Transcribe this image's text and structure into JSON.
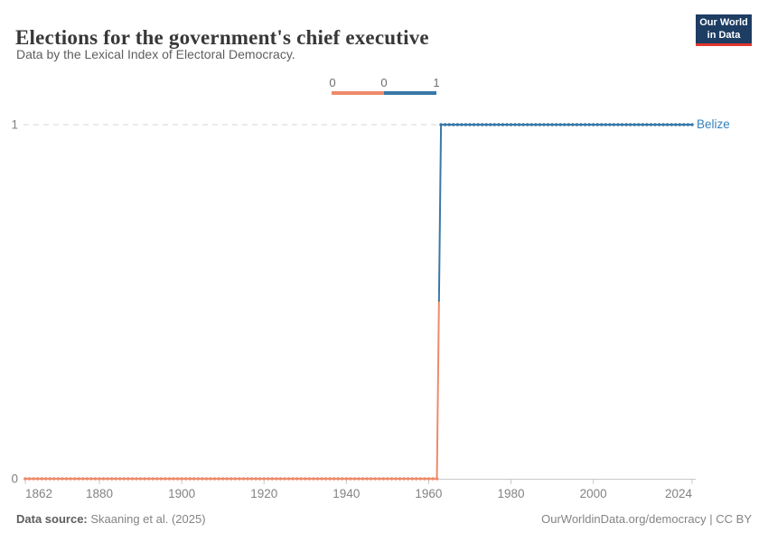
{
  "header": {
    "title": "Elections for the government's chief executive",
    "subtitle": "Data by the Lexical Index of Electoral Democracy.",
    "logo": {
      "line1": "Our World",
      "line2": "in Data",
      "bg_color": "#1d3d63",
      "accent_color": "#e0372e"
    }
  },
  "legend": {
    "labels": [
      "0",
      "0",
      "1"
    ],
    "segment_colors": [
      "#EE8A6A",
      "#3978A8"
    ]
  },
  "chart_data": {
    "type": "line",
    "title": "Elections for the government's chief executive",
    "subtitle": "Data by the Lexical Index of Electoral Democracy.",
    "entity_label": "Belize",
    "x_range": [
      1862,
      2024
    ],
    "y_range": [
      0,
      1
    ],
    "x_ticks": [
      1862,
      1880,
      1900,
      1920,
      1940,
      1960,
      1980,
      2000,
      2024
    ],
    "y_ticks": [
      0,
      1
    ],
    "grid": "horizontal-dashed-at-1",
    "legend_position": "top-center",
    "marker": "yearly-dots",
    "series": [
      {
        "name": "Belize",
        "segments": [
          {
            "start_year": 1862,
            "end_year": 1962,
            "value": 0,
            "color": "#EE8A6A"
          },
          {
            "start_year": 1963,
            "end_year": 2024,
            "value": 1,
            "color": "#3978A8"
          }
        ],
        "step_change_year": 1963,
        "label_color": "#3581bd"
      }
    ]
  },
  "footer": {
    "source_label": "Data source:",
    "source_value": " Skaaning et al. (2025)",
    "credit": "OurWorldinData.org/democracy | CC BY"
  }
}
